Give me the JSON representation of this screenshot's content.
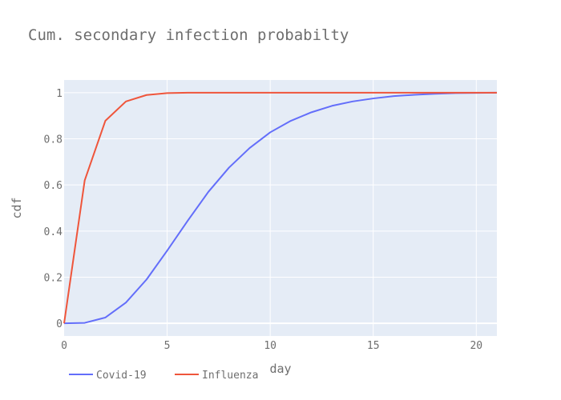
{
  "chart_data": {
    "type": "line",
    "title": "Cum. secondary infection probabilty",
    "xlabel": "day",
    "ylabel": "cdf",
    "xlim": [
      0,
      21
    ],
    "ylim": [
      -0.055,
      1.055
    ],
    "xticks": [
      0,
      5,
      10,
      15,
      20
    ],
    "xtick_labels": [
      "0",
      "5",
      "10",
      "15",
      "20"
    ],
    "yticks": [
      0,
      0.2,
      0.4,
      0.6,
      0.8,
      1
    ],
    "ytick_labels": [
      "0",
      "0.2",
      "0.4",
      "0.6",
      "0.8",
      "1"
    ],
    "grid": true,
    "legend_position": "bottom-left",
    "x": [
      0,
      1,
      2,
      3,
      4,
      5,
      6,
      7,
      8,
      9,
      10,
      11,
      12,
      13,
      14,
      15,
      16,
      17,
      18,
      19,
      20,
      21
    ],
    "series": [
      {
        "name": "Covid-19",
        "color": "#636efa",
        "values": [
          0.0,
          0.002,
          0.025,
          0.09,
          0.19,
          0.315,
          0.445,
          0.57,
          0.675,
          0.76,
          0.828,
          0.878,
          0.915,
          0.943,
          0.962,
          0.975,
          0.985,
          0.991,
          0.995,
          0.998,
          0.999,
          1.0
        ]
      },
      {
        "name": "Influenza",
        "color": "#ef553b",
        "values": [
          0.0,
          0.62,
          0.878,
          0.962,
          0.99,
          0.998,
          1.0,
          1.0,
          1.0,
          1.0,
          1.0,
          1.0,
          1.0,
          1.0,
          1.0,
          1.0,
          1.0,
          1.0,
          1.0,
          1.0,
          1.0,
          1.0
        ]
      }
    ]
  }
}
